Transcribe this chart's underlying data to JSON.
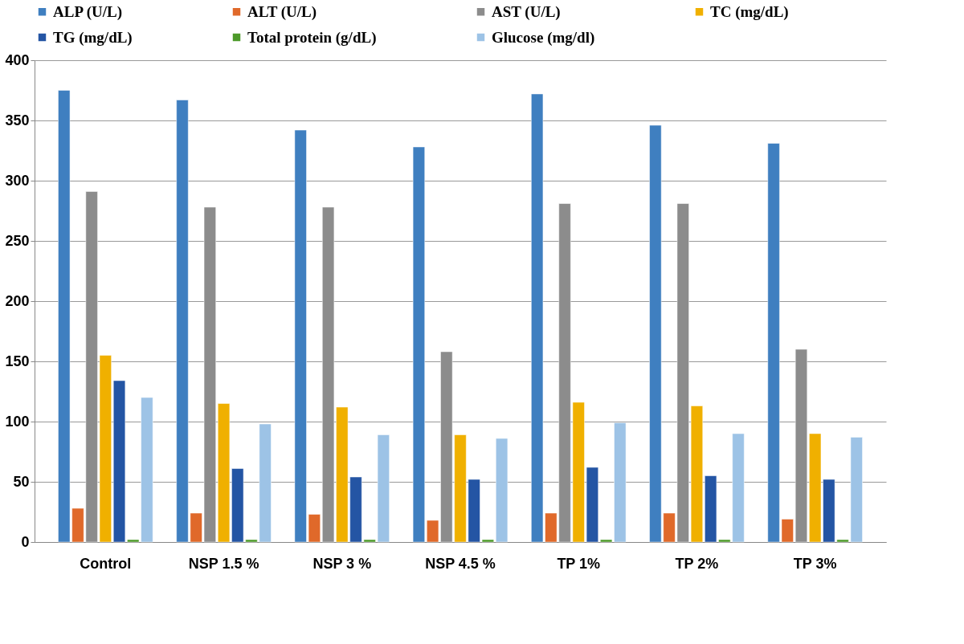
{
  "chart_data": {
    "type": "bar",
    "categories": [
      "Control",
      "NSP 1.5 %",
      "NSP 3 %",
      "NSP 4.5 %",
      "TP 1%",
      "TP 2%",
      "TP 3%"
    ],
    "series": [
      {
        "name": "ALP (U/L)",
        "color": "#3f7fc0",
        "values": [
          375,
          367,
          342,
          328,
          372,
          346,
          331
        ]
      },
      {
        "name": "ALT (U/L)",
        "color": "#e0692a",
        "values": [
          28,
          24,
          23,
          18,
          24,
          24,
          19
        ]
      },
      {
        "name": "AST (U/L)",
        "color": "#8c8c8c",
        "values": [
          291,
          278,
          278,
          158,
          281,
          281,
          160
        ]
      },
      {
        "name": "TC (mg/dL)",
        "color": "#f0b000",
        "values": [
          155,
          115,
          112,
          89,
          116,
          113,
          90
        ]
      },
      {
        "name": "TG (mg/dL)",
        "color": "#2455a4",
        "values": [
          134,
          61,
          54,
          52,
          62,
          55,
          52
        ]
      },
      {
        "name": "Total protein (g/dL)",
        "color": "#4d9a2a",
        "values": [
          2,
          2,
          2,
          2,
          2,
          2,
          2
        ]
      },
      {
        "name": "Glucose (mg/dl)",
        "color": "#9dc3e6",
        "values": [
          120,
          98,
          89,
          86,
          99,
          90,
          87
        ]
      }
    ],
    "ylim": [
      0,
      400
    ],
    "yticks": [
      0,
      50,
      100,
      150,
      200,
      250,
      300,
      350,
      400
    ],
    "grid": "y",
    "legend": "top"
  }
}
